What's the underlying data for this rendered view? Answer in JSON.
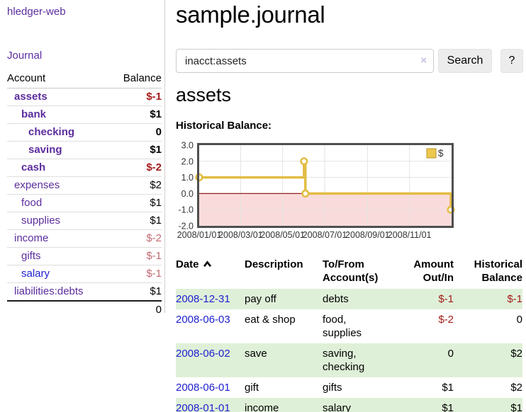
{
  "app": {
    "brand": "hledger-web"
  },
  "sidebar": {
    "journal_label": "Journal",
    "accounts_table": {
      "headers": {
        "account": "Account",
        "balance": "Balance"
      },
      "rows": [
        {
          "name": "assets",
          "indent": 1,
          "bold": true,
          "balance": "$-1",
          "balance_style": "neg"
        },
        {
          "name": "bank",
          "indent": 2,
          "bold": true,
          "balance": "$1",
          "balance_style": "pos"
        },
        {
          "name": "checking",
          "indent": 3,
          "bold": true,
          "balance": "0",
          "balance_style": "pos"
        },
        {
          "name": "saving",
          "indent": 3,
          "bold": true,
          "balance": "$1",
          "balance_style": "pos"
        },
        {
          "name": "cash",
          "indent": 2,
          "bold": true,
          "balance": "$-2",
          "balance_style": "neg"
        },
        {
          "name": "expenses",
          "indent": 1,
          "bold": false,
          "balance": "$2",
          "balance_style": "pos"
        },
        {
          "name": "food",
          "indent": 2,
          "bold": false,
          "balance": "$1",
          "balance_style": "pos"
        },
        {
          "name": "supplies",
          "indent": 2,
          "bold": false,
          "balance": "$1",
          "balance_style": "pos"
        },
        {
          "name": "income",
          "indent": 1,
          "bold": false,
          "balance": "$-2",
          "balance_style": "neg-muted"
        },
        {
          "name": "gifts",
          "indent": 2,
          "bold": false,
          "balance": "$-1",
          "balance_style": "neg-muted"
        },
        {
          "name": "salary",
          "indent": 2,
          "bold": false,
          "link_style": "blue",
          "balance": "$-1",
          "balance_style": "neg-muted"
        },
        {
          "name": "liabilities:debts",
          "indent": 1,
          "bold": false,
          "balance": "$1",
          "balance_style": "pos"
        }
      ],
      "total": "0"
    }
  },
  "main": {
    "title": "sample.journal",
    "search": {
      "value": "inacct:assets",
      "clear_icon": "×",
      "button_label": "Search",
      "help_label": "?"
    },
    "account_heading": "assets",
    "chart_label": "Historical Balance:"
  },
  "chart_data": {
    "type": "line",
    "title": "Historical Balance",
    "step": true,
    "series": [
      {
        "name": "$",
        "color": "#e3bd43",
        "points": [
          [
            "2008-01-01",
            1
          ],
          [
            "2008-06-01",
            2
          ],
          [
            "2008-06-03",
            0
          ],
          [
            "2008-12-31",
            -1
          ]
        ]
      }
    ],
    "x_domain": [
      "2008-01-01",
      "2009-01-01"
    ],
    "x_ticks": [
      "2008/01/01",
      "2008/03/01",
      "2008/05/01",
      "2008/07/01",
      "2008/09/01",
      "2008/11/01"
    ],
    "y_ticks": [
      "3.0",
      "2.0",
      "1.0",
      "0.0",
      "-1.0",
      "-2.0"
    ],
    "ylim": [
      -2,
      3
    ],
    "legend": {
      "label": "$",
      "position": "top-right",
      "swatch_color": "#ecc84d"
    },
    "grid": true,
    "negative_region_fill": "#fadbdb",
    "zero_line_color": "#8f1e1e",
    "plot_border_color": "#4f4f4f"
  },
  "register_table": {
    "headers": [
      {
        "lines": [
          "Date"
        ],
        "sort_icon": "chevron-up-icon",
        "align": "left"
      },
      {
        "lines": [
          "Description"
        ],
        "align": "left"
      },
      {
        "lines": [
          "To/From",
          "Account(s)"
        ],
        "align": "left"
      },
      {
        "lines": [
          "Amount",
          "Out/In"
        ],
        "align": "right"
      },
      {
        "lines": [
          "Historical",
          "Balance"
        ],
        "align": "right"
      }
    ],
    "rows": [
      {
        "date": "2008-12-31",
        "description": "pay off",
        "accounts": "debts",
        "amount": "$-1",
        "amount_negative": true,
        "balance": "$-1",
        "balance_negative": true
      },
      {
        "date": "2008-06-03",
        "description": "eat & shop",
        "accounts": "food, supplies",
        "amount": "$-2",
        "amount_negative": true,
        "balance": "0",
        "balance_negative": false
      },
      {
        "date": "2008-06-02",
        "description": "save",
        "accounts": "saving, checking",
        "amount": "0",
        "amount_negative": false,
        "balance": "$2",
        "balance_negative": false
      },
      {
        "date": "2008-06-01",
        "description": "gift",
        "accounts": "gifts",
        "amount": "$1",
        "amount_negative": false,
        "balance": "$2",
        "balance_negative": false
      },
      {
        "date": "2008-01-01",
        "description": "income",
        "accounts": "salary",
        "amount": "$1",
        "amount_negative": false,
        "balance": "$1",
        "balance_negative": false
      }
    ]
  }
}
